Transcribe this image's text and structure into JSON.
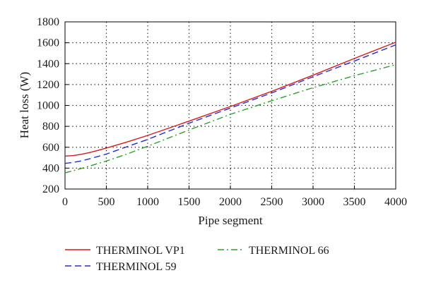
{
  "chart_data": {
    "type": "line",
    "title": "",
    "xlabel": "Pipe segment",
    "ylabel": "Heat loss (W)",
    "xlim": [
      0,
      4000
    ],
    "ylim": [
      200,
      1800
    ],
    "xticks": [
      0,
      500,
      1000,
      1500,
      2000,
      2500,
      3000,
      3500,
      4000
    ],
    "yticks": [
      200,
      400,
      600,
      800,
      1000,
      1200,
      1400,
      1600,
      1800
    ],
    "grid": true,
    "grid_style": "dotted",
    "legend_position": "below",
    "series": [
      {
        "name": "THERMINOL VP1",
        "color": "#d7191c",
        "dash": "solid",
        "x": [
          0,
          100,
          200,
          300,
          400,
          500,
          750,
          1000,
          1500,
          2000,
          2500,
          3000,
          3500,
          4000
        ],
        "y": [
          515,
          520,
          533,
          550,
          570,
          592,
          650,
          713,
          850,
          990,
          1135,
          1290,
          1450,
          1605
        ]
      },
      {
        "name": "THERMINOL 59",
        "color": "#1f2fd6",
        "dash": "dashed",
        "x": [
          0,
          100,
          200,
          300,
          400,
          500,
          750,
          1000,
          1500,
          2000,
          2500,
          3000,
          3500,
          4000
        ],
        "y": [
          445,
          455,
          470,
          490,
          512,
          535,
          605,
          675,
          830,
          975,
          1120,
          1275,
          1425,
          1580
        ]
      },
      {
        "name": "THERMINOL 66",
        "color": "#2ca02c",
        "dash": "dashdot",
        "x": [
          0,
          100,
          200,
          300,
          400,
          500,
          750,
          1000,
          1500,
          2000,
          2500,
          3000,
          3500,
          4000
        ],
        "y": [
          355,
          375,
          398,
          420,
          445,
          468,
          535,
          610,
          765,
          915,
          1045,
          1170,
          1285,
          1390
        ]
      }
    ]
  }
}
